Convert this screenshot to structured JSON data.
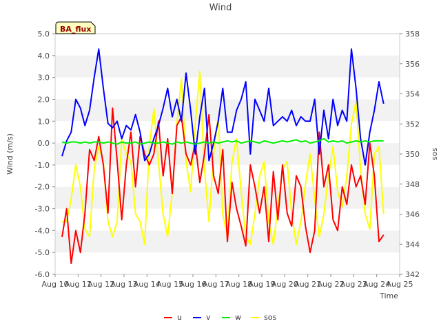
{
  "chart_data": {
    "type": "line",
    "title": "Wind",
    "xlabel": "Time",
    "ylabel": "Wind (m/s)",
    "y2label": "sos",
    "badge": "BA_flux",
    "xlim": [
      10,
      25
    ],
    "ylim": [
      -6,
      5
    ],
    "y2lim": [
      342,
      358
    ],
    "x_ticks": [
      {
        "v": 10,
        "label": "Aug 10"
      },
      {
        "v": 11,
        "label": "Aug 11"
      },
      {
        "v": 12,
        "label": "Aug 12"
      },
      {
        "v": 13,
        "label": "Aug 13"
      },
      {
        "v": 14,
        "label": "Aug 14"
      },
      {
        "v": 15,
        "label": "Aug 15"
      },
      {
        "v": 16,
        "label": "Aug 16"
      },
      {
        "v": 17,
        "label": "Aug 17"
      },
      {
        "v": 18,
        "label": "Aug 18"
      },
      {
        "v": 19,
        "label": "Aug 19"
      },
      {
        "v": 20,
        "label": "Aug 20"
      },
      {
        "v": 21,
        "label": "Aug 21"
      },
      {
        "v": 22,
        "label": "Aug 22"
      },
      {
        "v": 23,
        "label": "Aug 23"
      },
      {
        "v": 24,
        "label": "Aug 24"
      },
      {
        "v": 25,
        "label": "Aug 25"
      }
    ],
    "y_ticks": [
      {
        "v": 5,
        "label": "5.0"
      },
      {
        "v": 4,
        "label": "4.0"
      },
      {
        "v": 3,
        "label": "3.0"
      },
      {
        "v": 2,
        "label": "2.0"
      },
      {
        "v": 1,
        "label": "1.0"
      },
      {
        "v": 0,
        "label": "0.0"
      },
      {
        "v": -1,
        "label": "-1.0"
      },
      {
        "v": -2,
        "label": "-2.0"
      },
      {
        "v": -3,
        "label": "-3.0"
      },
      {
        "v": -4,
        "label": "-4.0"
      },
      {
        "v": -5,
        "label": "-5.0"
      },
      {
        "v": -6,
        "label": "-6.0"
      }
    ],
    "y2_ticks": [
      {
        "v": 358,
        "label": "358"
      },
      {
        "v": 356,
        "label": "356"
      },
      {
        "v": 354,
        "label": "354"
      },
      {
        "v": 352,
        "label": "352"
      },
      {
        "v": 350,
        "label": "350"
      },
      {
        "v": 348,
        "label": "348"
      },
      {
        "v": 346,
        "label": "346"
      },
      {
        "v": 344,
        "label": "344"
      },
      {
        "v": 342,
        "label": "342"
      }
    ],
    "x": [
      10.3,
      10.5,
      10.7,
      10.9,
      11.1,
      11.3,
      11.5,
      11.7,
      11.9,
      12.1,
      12.3,
      12.5,
      12.7,
      12.9,
      13.1,
      13.3,
      13.5,
      13.7,
      13.9,
      14.1,
      14.3,
      14.5,
      14.7,
      14.9,
      15.1,
      15.3,
      15.5,
      15.7,
      15.9,
      16.1,
      16.3,
      16.5,
      16.7,
      16.9,
      17.1,
      17.3,
      17.5,
      17.7,
      17.9,
      18.1,
      18.3,
      18.5,
      18.7,
      18.9,
      19.1,
      19.3,
      19.5,
      19.7,
      19.9,
      20.1,
      20.3,
      20.5,
      20.7,
      20.9,
      21.1,
      21.3,
      21.5,
      21.7,
      21.9,
      22.1,
      22.3,
      22.5,
      22.7,
      22.9,
      23.1,
      23.3,
      23.5,
      23.7,
      23.9,
      24.1,
      24.3
    ],
    "series": [
      {
        "name": "u",
        "color": "#ff0000",
        "axis": "left",
        "values": [
          -4.3,
          -3.0,
          -5.5,
          -4.0,
          -5.0,
          -3.2,
          -0.3,
          -0.8,
          0.3,
          -1.0,
          -3.2,
          1.6,
          -0.8,
          -3.5,
          -1.0,
          0.5,
          -2.0,
          0.3,
          -0.5,
          -1.0,
          -0.5,
          1.0,
          -1.5,
          0.2,
          -2.3,
          0.8,
          1.2,
          -0.5,
          -1.0,
          0.0,
          -1.8,
          -0.5,
          1.3,
          -1.5,
          -2.3,
          -0.3,
          -4.5,
          -1.8,
          -3.0,
          -3.8,
          -4.7,
          -1.0,
          -2.0,
          -3.2,
          -2.0,
          -4.5,
          -1.3,
          -3.5,
          -1.0,
          -3.2,
          -3.8,
          -1.5,
          -2.0,
          -3.8,
          -5.0,
          -4.0,
          0.5,
          -2.0,
          -1.0,
          -3.5,
          -4.0,
          -2.0,
          -2.8,
          -1.0,
          -2.0,
          -1.5,
          -2.8,
          0.0,
          -1.5,
          -4.5,
          -4.2
        ]
      },
      {
        "name": "v",
        "color": "#0000ff",
        "axis": "left",
        "values": [
          -0.6,
          0.1,
          0.5,
          2.0,
          1.6,
          0.8,
          1.5,
          3.0,
          4.3,
          2.5,
          0.9,
          0.7,
          1.0,
          0.2,
          0.8,
          0.6,
          1.3,
          0.5,
          -0.8,
          -0.5,
          0.2,
          0.8,
          1.6,
          2.5,
          1.2,
          2.0,
          1.0,
          3.2,
          1.5,
          -0.5,
          1.2,
          2.5,
          -0.8,
          0.0,
          1.0,
          2.5,
          0.5,
          0.5,
          1.5,
          2.0,
          2.8,
          -0.5,
          2.0,
          1.5,
          1.0,
          2.5,
          0.8,
          1.0,
          1.2,
          1.0,
          1.5,
          0.8,
          1.2,
          1.0,
          1.0,
          2.0,
          -0.5,
          1.5,
          0.2,
          2.0,
          0.8,
          1.5,
          1.0,
          4.3,
          2.5,
          0.2,
          -1.0,
          0.5,
          1.5,
          2.8,
          1.8
        ]
      },
      {
        "name": "w",
        "color": "#00ee00",
        "axis": "left",
        "values": [
          0.05,
          0.0,
          0.05,
          0.05,
          0.0,
          0.05,
          0.0,
          0.05,
          0.05,
          0.0,
          0.05,
          0.0,
          -0.05,
          0.05,
          0.0,
          0.0,
          0.05,
          -0.05,
          0.0,
          0.05,
          0.0,
          0.0,
          0.05,
          0.0,
          -0.05,
          0.05,
          0.0,
          0.05,
          0.0,
          -0.05,
          0.0,
          0.05,
          0.0,
          0.05,
          0.0,
          0.05,
          0.1,
          0.05,
          0.1,
          0.0,
          0.05,
          0.1,
          0.05,
          0.0,
          0.1,
          0.05,
          0.0,
          0.05,
          0.1,
          0.05,
          0.1,
          0.15,
          0.05,
          0.1,
          0.0,
          0.05,
          0.1,
          0.2,
          0.05,
          0.1,
          0.05,
          0.1,
          0.0,
          0.05,
          0.1,
          0.05,
          0.1,
          0.05,
          0.1,
          0.1,
          0.1
        ]
      },
      {
        "name": "sos",
        "color": "#ffff00",
        "axis": "right",
        "values": [
          345.5,
          345.5,
          347.0,
          349.3,
          347.8,
          345.0,
          344.5,
          349.0,
          350.5,
          349.5,
          345.5,
          344.5,
          345.5,
          351.0,
          350.0,
          349.5,
          346.0,
          345.5,
          344.0,
          350.5,
          353.0,
          349.5,
          346.0,
          344.5,
          347.5,
          352.0,
          355.0,
          349.5,
          347.5,
          352.0,
          355.5,
          349.0,
          345.5,
          350.0,
          352.5,
          346.0,
          344.5,
          349.5,
          351.0,
          347.5,
          344.5,
          344.0,
          346.0,
          348.5,
          349.5,
          345.5,
          344.0,
          346.5,
          349.0,
          349.5,
          346.0,
          344.0,
          345.5,
          348.0,
          350.0,
          347.0,
          344.5,
          346.0,
          348.5,
          350.5,
          347.5,
          346.5,
          348.5,
          352.0,
          353.5,
          349.0,
          346.0,
          345.0,
          350.0,
          350.5,
          346.0
        ]
      }
    ],
    "legend_position": "bottom-center",
    "grid": false
  }
}
